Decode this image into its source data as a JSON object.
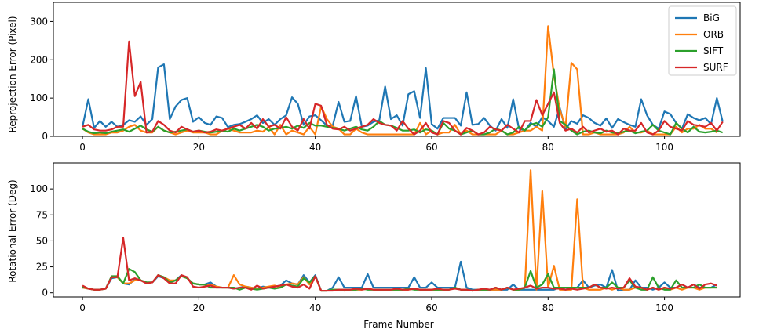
{
  "chart_data": [
    {
      "type": "line",
      "title": "",
      "xlabel": "",
      "ylabel": "Reprojection Error (Pixel)",
      "xlim": [
        -5,
        113
      ],
      "ylim": [
        0,
        350
      ],
      "xticks": [
        0,
        20,
        40,
        60,
        80,
        100
      ],
      "yticks": [
        0,
        100,
        200,
        300
      ],
      "legend": "top-right",
      "grid": false,
      "series": [
        {
          "name": "BiG",
          "color": "#1f77b4",
          "values": [
            25,
            97,
            22,
            40,
            25,
            38,
            25,
            30,
            42,
            38,
            52,
            30,
            45,
            180,
            188,
            45,
            78,
            95,
            100,
            38,
            50,
            35,
            30,
            52,
            48,
            24,
            30,
            32,
            38,
            45,
            55,
            35,
            45,
            30,
            45,
            55,
            102,
            85,
            30,
            52,
            55,
            42,
            28,
            28,
            90,
            38,
            40,
            105,
            25,
            28,
            38,
            42,
            130,
            45,
            55,
            28,
            110,
            118,
            48,
            178,
            32,
            20,
            48,
            48,
            48,
            28,
            115,
            30,
            32,
            48,
            28,
            15,
            45,
            22,
            97,
            20,
            15,
            35,
            25,
            50,
            40,
            25,
            75,
            18,
            40,
            33,
            55,
            48,
            35,
            28,
            47,
            22,
            45,
            37,
            30,
            25,
            97,
            55,
            30,
            20,
            65,
            58,
            35,
            20,
            58,
            48,
            42,
            48,
            32,
            100,
            38
          ]
        },
        {
          "name": "ORB",
          "color": "#ff7f0e",
          "values": [
            20,
            10,
            5,
            5,
            5,
            10,
            10,
            15,
            25,
            30,
            15,
            10,
            10,
            25,
            15,
            10,
            5,
            10,
            15,
            10,
            10,
            10,
            5,
            5,
            15,
            20,
            15,
            10,
            10,
            10,
            15,
            12,
            25,
            5,
            30,
            5,
            15,
            10,
            5,
            25,
            5,
            78,
            45,
            25,
            20,
            5,
            5,
            20,
            10,
            5,
            5,
            5,
            5,
            5,
            5,
            5,
            5,
            5,
            35,
            5,
            15,
            5,
            10,
            10,
            30,
            5,
            15,
            5,
            5,
            5,
            5,
            5,
            15,
            5,
            5,
            10,
            15,
            15,
            25,
            15,
            288,
            160,
            70,
            25,
            192,
            175,
            5,
            5,
            10,
            5,
            5,
            5,
            5,
            10,
            25,
            10,
            10,
            15,
            5,
            5,
            5,
            5,
            25,
            10,
            20,
            20,
            30,
            20,
            20,
            10
          ]
        },
        {
          "name": "SIFT",
          "color": "#2ca02c",
          "values": [
            20,
            12,
            8,
            10,
            8,
            12,
            15,
            18,
            12,
            20,
            28,
            18,
            12,
            25,
            15,
            10,
            12,
            15,
            18,
            12,
            15,
            12,
            10,
            12,
            15,
            12,
            20,
            15,
            20,
            25,
            30,
            25,
            15,
            20,
            22,
            25,
            20,
            28,
            22,
            35,
            28,
            28,
            25,
            22,
            20,
            15,
            20,
            25,
            18,
            15,
            25,
            40,
            30,
            28,
            22,
            15,
            15,
            18,
            10,
            18,
            15,
            5,
            35,
            20,
            15,
            5,
            10,
            15,
            5,
            5,
            10,
            20,
            15,
            5,
            10,
            25,
            15,
            30,
            35,
            25,
            50,
            175,
            40,
            30,
            15,
            5,
            12,
            15,
            10,
            8,
            15,
            10,
            8,
            12,
            15,
            8,
            12,
            15,
            30,
            15,
            10,
            5,
            35,
            20,
            10,
            25,
            12,
            10,
            12,
            15,
            10
          ]
        },
        {
          "name": "SURF",
          "color": "#d62728",
          "values": [
            25,
            30,
            18,
            15,
            15,
            18,
            25,
            25,
            248,
            105,
            142,
            10,
            12,
            40,
            30,
            15,
            10,
            25,
            18,
            12,
            15,
            10,
            12,
            18,
            15,
            20,
            25,
            30,
            20,
            35,
            20,
            45,
            25,
            30,
            20,
            50,
            25,
            15,
            45,
            20,
            85,
            80,
            30,
            20,
            18,
            25,
            15,
            20,
            25,
            30,
            45,
            35,
            30,
            28,
            15,
            40,
            20,
            5,
            15,
            35,
            10,
            5,
            40,
            35,
            15,
            5,
            22,
            15,
            5,
            10,
            25,
            18,
            15,
            30,
            20,
            10,
            40,
            40,
            95,
            55,
            85,
            115,
            35,
            15,
            20,
            10,
            25,
            10,
            15,
            20,
            12,
            15,
            5,
            20,
            15,
            15,
            35,
            10,
            5,
            15,
            40,
            25,
            20,
            15,
            40,
            30,
            28,
            25,
            35,
            15,
            38
          ]
        }
      ]
    },
    {
      "type": "line",
      "title": "",
      "xlabel": "Frame Number",
      "ylabel": "Rotational Error (Deg)",
      "xlim": [
        -5,
        113
      ],
      "ylim": [
        -4,
        125
      ],
      "xticks": [
        0,
        20,
        40,
        60,
        80,
        100
      ],
      "yticks": [
        0,
        25,
        50,
        75,
        100
      ],
      "grid": false,
      "series": [
        {
          "name": "BiG",
          "color": "#1f77b4",
          "values": [
            5,
            4,
            3,
            3,
            4,
            14,
            15,
            9,
            8,
            13,
            12,
            10,
            10,
            16,
            14,
            10,
            12,
            17,
            14,
            9,
            8,
            8,
            10,
            6,
            5,
            5,
            4,
            5,
            6,
            5,
            4,
            6,
            5,
            6,
            7,
            12,
            9,
            8,
            17,
            10,
            17,
            2,
            2,
            5,
            15,
            5,
            5,
            5,
            5,
            18,
            5,
            5,
            5,
            5,
            5,
            5,
            5,
            15,
            5,
            5,
            10,
            5,
            5,
            5,
            5,
            30,
            5,
            3,
            3,
            3,
            3,
            3,
            3,
            3,
            8,
            3,
            3,
            3,
            3,
            3,
            3,
            3,
            5,
            3,
            5,
            5,
            12,
            5,
            7,
            8,
            5,
            22,
            2,
            3,
            3,
            12,
            5,
            5,
            3,
            5,
            10,
            5,
            5,
            8,
            5,
            8,
            5,
            5,
            5,
            8
          ]
        },
        {
          "name": "ORB",
          "color": "#ff7f0e",
          "values": [
            5,
            4,
            3,
            3,
            4,
            15,
            15,
            9,
            9,
            12,
            12,
            10,
            10,
            17,
            15,
            12,
            12,
            16,
            14,
            9,
            8,
            8,
            8,
            6,
            5,
            5,
            17,
            8,
            6,
            5,
            4,
            5,
            6,
            7,
            5,
            8,
            9,
            8,
            15,
            8,
            16,
            2,
            2,
            3,
            3,
            2,
            3,
            3,
            3,
            4,
            3,
            3,
            3,
            3,
            3,
            3,
            3,
            4,
            3,
            3,
            3,
            3,
            3,
            3,
            5,
            3,
            3,
            2,
            3,
            3,
            3,
            3,
            3,
            5,
            3,
            3,
            5,
            118,
            3,
            98,
            5,
            26,
            3,
            3,
            3,
            90,
            5,
            3,
            3,
            3,
            5,
            3,
            5,
            3,
            3,
            5,
            5,
            3,
            5,
            3,
            5,
            3,
            5,
            3,
            5,
            5,
            3,
            5,
            5,
            5
          ]
        },
        {
          "name": "SIFT",
          "color": "#2ca02c",
          "values": [
            6,
            4,
            3,
            3,
            4,
            16,
            16,
            9,
            23,
            20,
            12,
            10,
            10,
            17,
            15,
            10,
            12,
            16,
            14,
            9,
            8,
            8,
            5,
            5,
            5,
            5,
            5,
            3,
            5,
            4,
            3,
            4,
            5,
            4,
            5,
            8,
            7,
            6,
            14,
            10,
            16,
            2,
            2,
            3,
            3,
            3,
            3,
            3,
            4,
            3,
            3,
            3,
            3,
            3,
            3,
            3,
            4,
            3,
            3,
            3,
            3,
            3,
            3,
            3,
            5,
            3,
            3,
            2,
            3,
            3,
            3,
            5,
            3,
            5,
            3,
            3,
            5,
            21,
            5,
            8,
            18,
            5,
            5,
            5,
            5,
            5,
            5,
            5,
            8,
            5,
            5,
            10,
            5,
            5,
            12,
            5,
            3,
            3,
            15,
            5,
            3,
            3,
            12,
            5,
            5,
            5,
            8,
            5,
            5,
            5
          ]
        },
        {
          "name": "SURF",
          "color": "#d62728",
          "values": [
            7,
            4,
            3,
            3,
            4,
            15,
            15,
            53,
            12,
            14,
            12,
            9,
            10,
            17,
            14,
            9,
            9,
            17,
            15,
            6,
            5,
            6,
            7,
            5,
            5,
            5,
            4,
            5,
            5,
            3,
            7,
            4,
            5,
            6,
            7,
            8,
            6,
            5,
            8,
            4,
            16,
            2,
            2,
            2,
            3,
            3,
            3,
            4,
            3,
            4,
            3,
            3,
            3,
            3,
            4,
            3,
            3,
            4,
            3,
            3,
            3,
            4,
            3,
            3,
            4,
            3,
            3,
            2,
            3,
            4,
            3,
            5,
            3,
            5,
            3,
            4,
            5,
            7,
            4,
            5,
            5,
            4,
            4,
            3,
            4,
            3,
            4,
            5,
            8,
            5,
            4,
            5,
            4,
            5,
            14,
            6,
            5,
            3,
            5,
            3,
            5,
            4,
            5,
            8,
            5,
            8,
            4,
            8,
            9,
            7
          ]
        }
      ]
    }
  ]
}
